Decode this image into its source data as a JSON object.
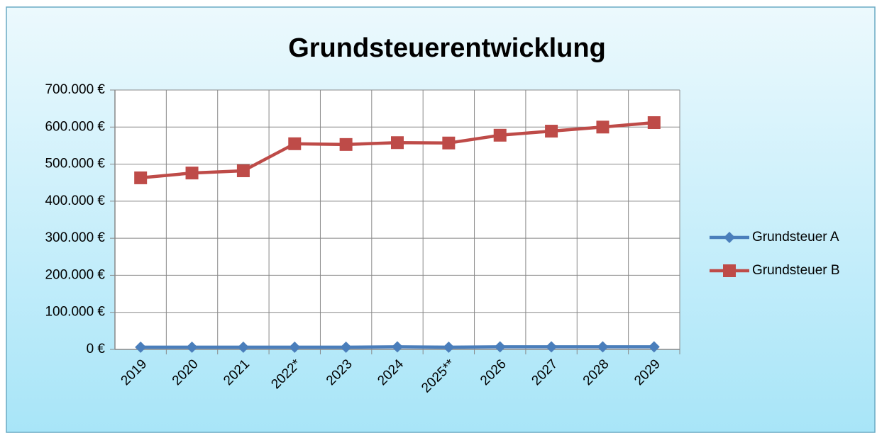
{
  "chart_data": {
    "type": "line",
    "title": "Grundsteuerentwicklung",
    "categories": [
      "2019",
      "2020",
      "2021",
      "2022*",
      "2023",
      "2024",
      "2025**",
      "2026",
      "2027",
      "2028",
      "2029"
    ],
    "series": [
      {
        "name": "Grundsteuer A",
        "color": "#4a7ebb",
        "marker": "diamond",
        "values": [
          6000,
          6000,
          6000,
          6000,
          6000,
          7000,
          6000,
          7000,
          7000,
          7000,
          7000
        ]
      },
      {
        "name": "Grundsteuer B",
        "color": "#be4b48",
        "marker": "square",
        "values": [
          463000,
          476000,
          482000,
          555000,
          553000,
          558000,
          557000,
          578000,
          589000,
          600000,
          612000
        ]
      }
    ],
    "ylim": [
      0,
      700000
    ],
    "yticks": [
      {
        "value": 0,
        "label": "0 €"
      },
      {
        "value": 100000,
        "label": "100.000 €"
      },
      {
        "value": 200000,
        "label": "200.000 €"
      },
      {
        "value": 300000,
        "label": "300.000 €"
      },
      {
        "value": 400000,
        "label": "400.000 €"
      },
      {
        "value": 500000,
        "label": "500.000 €"
      },
      {
        "value": 600000,
        "label": "600.000 €"
      },
      {
        "value": 700000,
        "label": "700.000 €"
      }
    ],
    "grid": true,
    "legend": "right"
  }
}
